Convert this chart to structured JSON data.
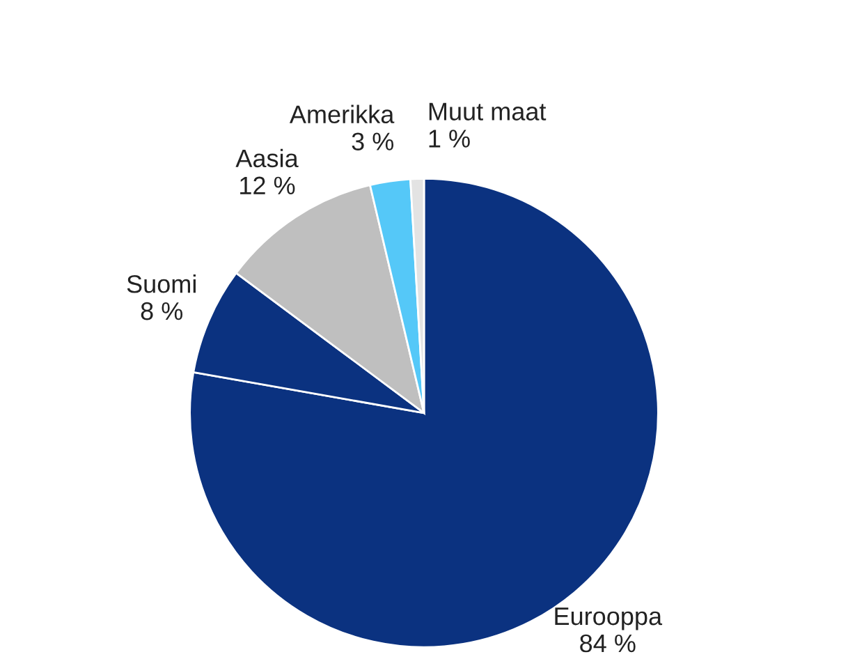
{
  "chart_data": {
    "type": "pie",
    "categories": [
      "Eurooppa",
      "Suomi",
      "Aasia",
      "Amerikka",
      "Muut maat"
    ],
    "values": [
      84,
      8,
      12,
      3,
      1
    ],
    "value_labels": [
      "84 %",
      "8 %",
      "12 %",
      "3 %",
      "1 %"
    ],
    "colors": [
      "#0b3280",
      "#0b3280",
      "#bfbfbf",
      "#55c8f8",
      "#e3e3e3"
    ]
  }
}
